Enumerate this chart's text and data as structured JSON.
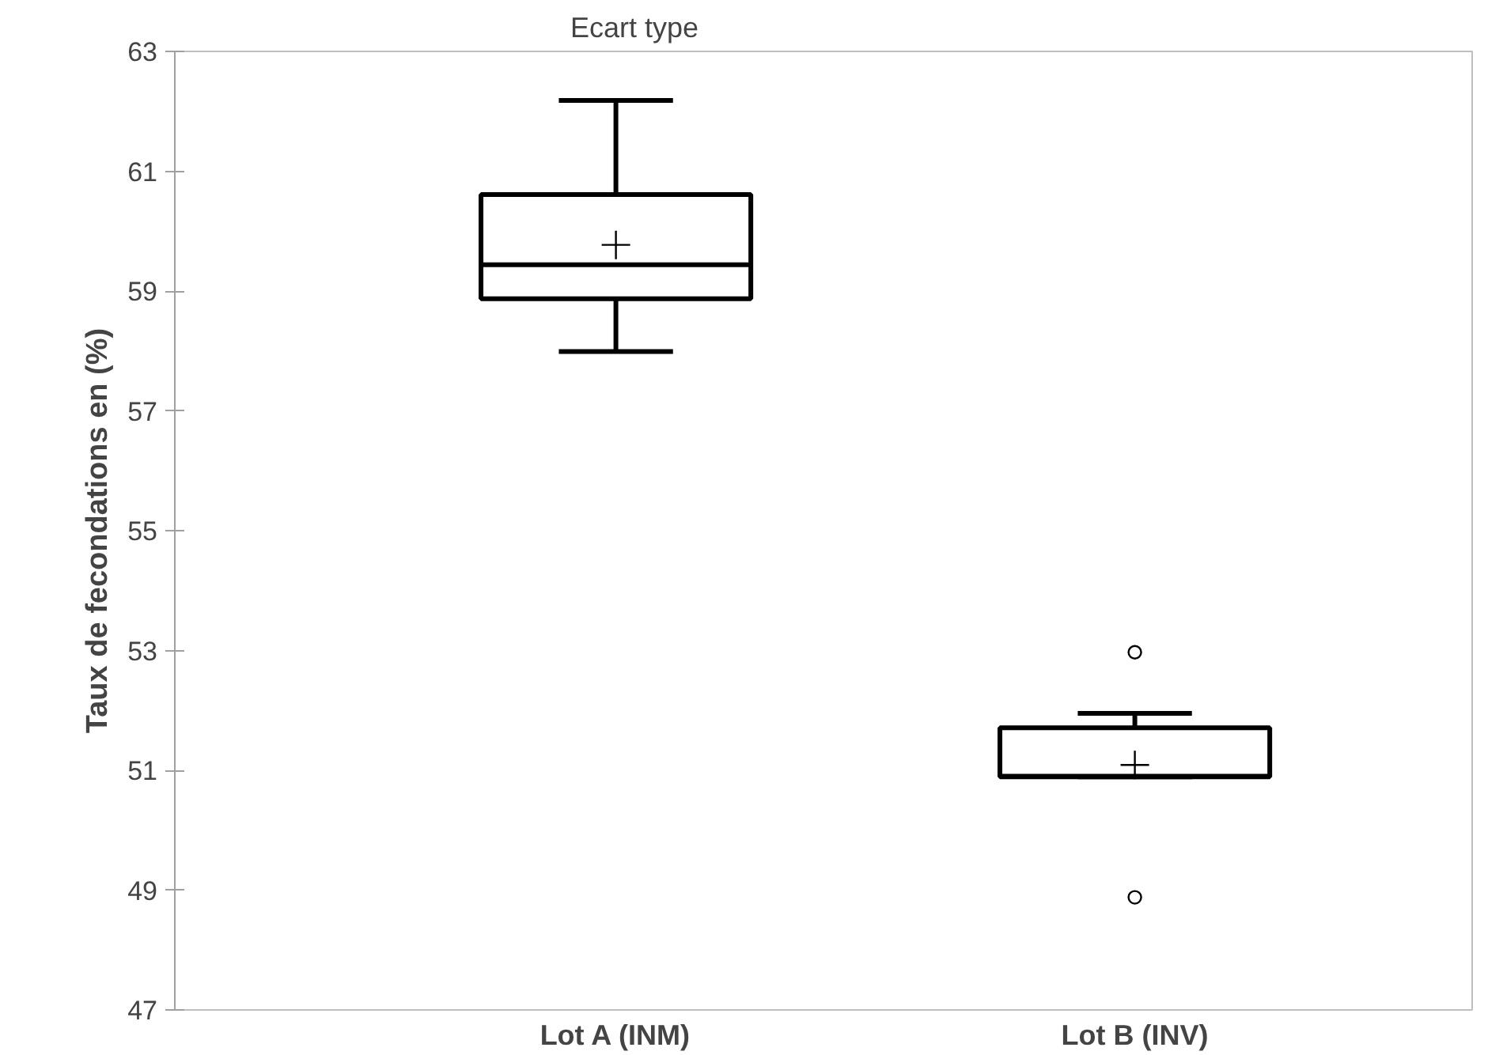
{
  "chart_data": {
    "type": "box",
    "ylabel": "Taux de fecondations en (%)",
    "categories": [
      "Lot A (INM)",
      "Lot B (INV)"
    ],
    "boxes": [
      {
        "low": 57.99,
        "q1": 58.87,
        "median": 59.44,
        "q3": 60.61,
        "high": 62.18,
        "mean": 59.77
      },
      {
        "low": 50.89,
        "q1": 50.89,
        "median": 50.9,
        "q3": 51.71,
        "high": 51.95,
        "mean": 51.09,
        "outliers": [
          52.97,
          48.88
        ]
      }
    ],
    "ylim": [
      47,
      63
    ],
    "yticks": [
      47,
      49,
      51,
      53,
      55,
      57,
      59,
      61,
      63
    ],
    "grid": false,
    "annotations": [
      "Ecart type"
    ]
  }
}
